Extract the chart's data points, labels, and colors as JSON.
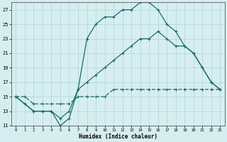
{
  "xlabel": "Humidex (Indice chaleur)",
  "bg_color": "#d6eef0",
  "grid_color": "#b0d4d8",
  "line_color": "#1a6b6b",
  "xlim": [
    -0.5,
    23.5
  ],
  "ylim": [
    11,
    28
  ],
  "xticks": [
    0,
    1,
    2,
    3,
    4,
    5,
    6,
    7,
    8,
    9,
    10,
    11,
    12,
    13,
    14,
    15,
    16,
    17,
    18,
    19,
    20,
    21,
    22,
    23
  ],
  "yticks": [
    11,
    13,
    15,
    17,
    19,
    21,
    23,
    25,
    27
  ],
  "line1_x": [
    0,
    1,
    2,
    3,
    4,
    5,
    6,
    7,
    8,
    9,
    10,
    11,
    12,
    13,
    14,
    15,
    16,
    17,
    18,
    19,
    20,
    21,
    22,
    23
  ],
  "line1_y": [
    15,
    14,
    13,
    13,
    13,
    11,
    12,
    16,
    17,
    18,
    19,
    20,
    21,
    22,
    23,
    23,
    24,
    23,
    22,
    22,
    21,
    19,
    17,
    16
  ],
  "line2_x": [
    0,
    1,
    2,
    3,
    4,
    5,
    6,
    7,
    8,
    9,
    10,
    11,
    12,
    13,
    14,
    15,
    16,
    17,
    18,
    19,
    20,
    21,
    22,
    23
  ],
  "line2_y": [
    15,
    15,
    14,
    14,
    14,
    14,
    14,
    15,
    15,
    15,
    15,
    16,
    16,
    16,
    16,
    16,
    16,
    16,
    16,
    16,
    16,
    16,
    16,
    16
  ],
  "line3_x": [
    0,
    1,
    2,
    3,
    4,
    5,
    6,
    7,
    8,
    9,
    10,
    11,
    12,
    13,
    14,
    15,
    16,
    17,
    18,
    19,
    20,
    21,
    22,
    23
  ],
  "line3_y": [
    15,
    14,
    13,
    13,
    13,
    12,
    13,
    16,
    23,
    25,
    26,
    26,
    27,
    27,
    28,
    28,
    27,
    25,
    24,
    22,
    21,
    19,
    17,
    16
  ]
}
